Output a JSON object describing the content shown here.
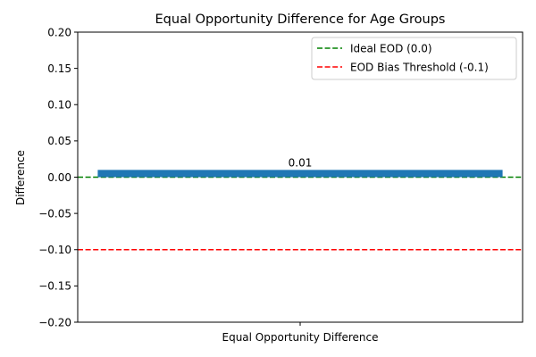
{
  "chart_data": {
    "type": "bar",
    "title": "Equal Opportunity Difference for Age Groups",
    "xlabel": "",
    "ylabel": "Difference",
    "categories": [
      "Equal Opportunity Difference"
    ],
    "values": [
      0.01
    ],
    "value_labels": [
      "0.01"
    ],
    "bar_color": "#1f77b4",
    "ylim": [
      -0.2,
      0.2
    ],
    "yticks": [
      0.2,
      0.15,
      0.1,
      0.05,
      0.0,
      -0.05,
      -0.1,
      -0.15,
      -0.2
    ],
    "ytick_labels": [
      "0.20",
      "0.15",
      "0.10",
      "0.05",
      "0.00",
      "−0.05",
      "−0.10",
      "−0.15",
      "−0.20"
    ],
    "grid": false,
    "reference_lines": [
      {
        "label": "Ideal EOD (0.0)",
        "y": 0.0,
        "color": "#008000",
        "style": "dashed"
      },
      {
        "label": "EOD Bias Threshold (-0.1)",
        "y": -0.1,
        "color": "#ff0000",
        "style": "dashed"
      }
    ],
    "legend_position": "top-right"
  }
}
